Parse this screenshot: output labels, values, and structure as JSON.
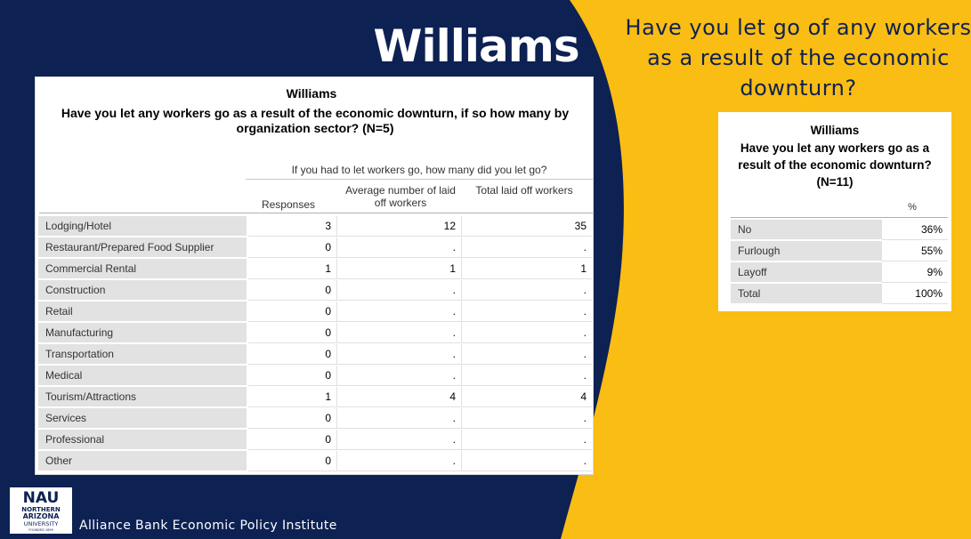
{
  "slide": {
    "title": "Williams",
    "question": "Have you let go of any workers as a result of the economic downturn?",
    "footer": "Alliance Bank Economic Policy Institute",
    "colors": {
      "navy": "#0d2153",
      "gold": "#f9bd14"
    }
  },
  "logo": {
    "line1": "NAU",
    "line2": "NORTHERN",
    "line3": "ARIZONA",
    "line4": "UNIVERSITY",
    "line5": "FOUNDED 1899"
  },
  "main_table": {
    "title": "Williams",
    "description": "Have you let any workers go as a result of the economic downturn, if so how many by organization sector?  (N=5)",
    "group_header": "If you had to let workers go, how many did you let go?",
    "columns": [
      "Responses",
      "Average number of laid off workers",
      "Total laid off workers"
    ],
    "rows": [
      {
        "label": "Lodging/Hotel",
        "responses": "3",
        "average": "12",
        "total": "35"
      },
      {
        "label": "Restaurant/Prepared Food Supplier",
        "responses": "0",
        "average": ".",
        "total": "."
      },
      {
        "label": "Commercial Rental",
        "responses": "1",
        "average": "1",
        "total": "1"
      },
      {
        "label": "Construction",
        "responses": "0",
        "average": ".",
        "total": "."
      },
      {
        "label": "Retail",
        "responses": "0",
        "average": ".",
        "total": "."
      },
      {
        "label": "Manufacturing",
        "responses": "0",
        "average": ".",
        "total": "."
      },
      {
        "label": "Transportation",
        "responses": "0",
        "average": ".",
        "total": "."
      },
      {
        "label": "Medical",
        "responses": "0",
        "average": ".",
        "total": "."
      },
      {
        "label": "Tourism/Attractions",
        "responses": "1",
        "average": "4",
        "total": "4"
      },
      {
        "label": "Services",
        "responses": "0",
        "average": ".",
        "total": "."
      },
      {
        "label": "Professional",
        "responses": "0",
        "average": ".",
        "total": "."
      },
      {
        "label": "Other",
        "responses": "0",
        "average": ".",
        "total": "."
      }
    ]
  },
  "small_table": {
    "title": "Williams",
    "description": "Have you let any workers go as a result of the economic downturn?  (N=11)",
    "column": "%",
    "rows": [
      {
        "label": "No",
        "value": "36%"
      },
      {
        "label": "Furlough",
        "value": "55%"
      },
      {
        "label": "Layoff",
        "value": "9%"
      },
      {
        "label": "Total",
        "value": "100%"
      }
    ]
  }
}
